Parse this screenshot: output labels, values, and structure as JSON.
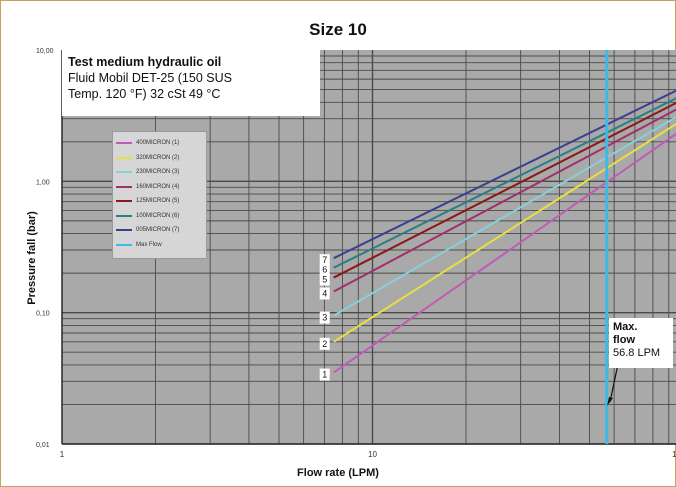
{
  "chart_data": {
    "type": "line",
    "title": "Size 10",
    "xlabel": "Flow rate (LPM)",
    "ylabel": "Pressure fall (bar)",
    "x_scale": "log",
    "y_scale": "log",
    "xlim": [
      1,
      100
    ],
    "ylim": [
      0.01,
      10
    ],
    "x_ticks": [
      "1",
      "10"
    ],
    "y_ticks": [
      "0,01",
      "0,10",
      "1,00",
      "10,00"
    ],
    "grid": true,
    "legend_position": "upper-left",
    "annotation": {
      "lines": [
        "Test medium hydraulic oil",
        "Fluid Mobil DET-25 (150 SUS",
        "Temp. 120 °F) 32 cSt 49 °C"
      ]
    },
    "max_flow": {
      "x": 56.8,
      "label_bold": "Max.",
      "label_bold2": "flow",
      "label": "56.8 LPM",
      "color": "#3db8e8"
    },
    "series": [
      {
        "name": "400MICRON (1)",
        "label": "1",
        "color": "#c05bb8",
        "x": [
          7.5,
          100
        ],
        "y": [
          0.035,
          2.5
        ]
      },
      {
        "name": "320MICRON (2)",
        "label": "2",
        "color": "#e8e040",
        "x": [
          7.5,
          100
        ],
        "y": [
          0.06,
          2.95
        ]
      },
      {
        "name": "230MICRON (3)",
        "label": "3",
        "color": "#88d0d8",
        "x": [
          7.5,
          100
        ],
        "y": [
          0.095,
          3.3
        ]
      },
      {
        "name": "160MICRON (4)",
        "label": "4",
        "color": "#a0306a",
        "x": [
          7.5,
          100
        ],
        "y": [
          0.145,
          3.75
        ]
      },
      {
        "name": "125MICRON (5)",
        "label": "5",
        "color": "#8a1818",
        "x": [
          7.5,
          100
        ],
        "y": [
          0.185,
          4.2
        ]
      },
      {
        "name": "100MICRON (6)",
        "label": "6",
        "color": "#2a7e86",
        "x": [
          7.5,
          100
        ],
        "y": [
          0.22,
          4.55
        ]
      },
      {
        "name": "005MICRON (7)",
        "label": "7",
        "color": "#3a4090",
        "x": [
          7.5,
          100
        ],
        "y": [
          0.26,
          5.2
        ]
      }
    ],
    "legend_extra": {
      "name": "Max Flow",
      "color": "#3db8e8"
    }
  }
}
